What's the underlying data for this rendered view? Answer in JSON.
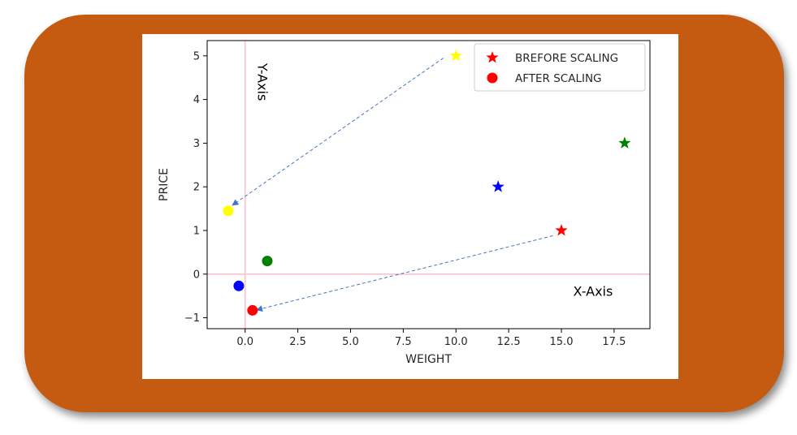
{
  "chart_data": {
    "type": "scatter",
    "xlabel": "WEIGHT",
    "ylabel": "PRICE",
    "xlim": [
      -1.8,
      19.2
    ],
    "ylim": [
      -1.25,
      5.35
    ],
    "xticks": [
      0.0,
      2.5,
      5.0,
      7.5,
      10.0,
      12.5,
      15.0,
      17.5
    ],
    "xtick_labels": [
      "0.0",
      "2.5",
      "5.0",
      "7.5",
      "10.0",
      "12.5",
      "15.0",
      "17.5"
    ],
    "yticks": [
      -1,
      0,
      1,
      2,
      3,
      4,
      5
    ],
    "ytick_labels": [
      "−1",
      "0",
      "1",
      "2",
      "3",
      "4",
      "5"
    ],
    "grid": false,
    "legend_position": "top-right",
    "reference_lines": {
      "x": 0,
      "y": 0,
      "color": "#FFC0CB"
    },
    "series": [
      {
        "name": "BREFORE SCALING",
        "marker": "star",
        "points": [
          {
            "x": 10,
            "y": 5,
            "color": "#FFFF00"
          },
          {
            "x": 12,
            "y": 2,
            "color": "#0000FF"
          },
          {
            "x": 18,
            "y": 3,
            "color": "#008000"
          },
          {
            "x": 15,
            "y": 1,
            "color": "#FF0000"
          }
        ]
      },
      {
        "name": "AFTER SCALING",
        "marker": "circle",
        "points": [
          {
            "x": -0.8,
            "y": 1.45,
            "color": "#FFFF00"
          },
          {
            "x": -0.3,
            "y": -0.27,
            "color": "#0000FF"
          },
          {
            "x": 1.05,
            "y": 0.3,
            "color": "#008000"
          },
          {
            "x": 0.35,
            "y": -0.83,
            "color": "#FF0000"
          }
        ]
      }
    ],
    "legend_colors": [
      "#FF0000",
      "#FF0000"
    ],
    "arrows": [
      {
        "from": [
          9.4,
          4.95
        ],
        "to": [
          -0.6,
          1.58
        ],
        "color": "#4472C4",
        "style": "dashed"
      },
      {
        "from": [
          14.6,
          0.88
        ],
        "to": [
          0.55,
          -0.82
        ],
        "color": "#4472C4",
        "style": "dashed"
      }
    ],
    "annotations": [
      {
        "text": "Y-Axis",
        "x": 0.6,
        "y": 4.4,
        "rotation": 90
      },
      {
        "text": "X-Axis",
        "x": 16.5,
        "y": -0.5,
        "rotation": 0
      }
    ]
  },
  "colors": {
    "frame": "#C55A11"
  }
}
